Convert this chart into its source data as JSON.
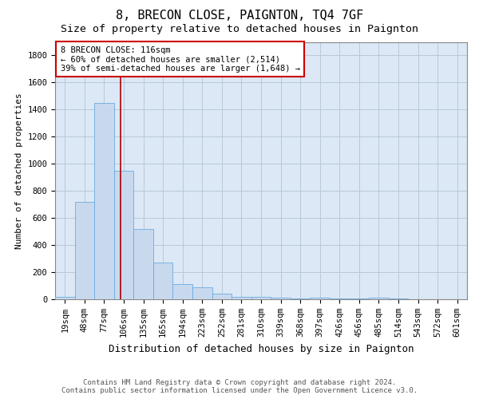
{
  "title": "8, BRECON CLOSE, PAIGNTON, TQ4 7GF",
  "subtitle": "Size of property relative to detached houses in Paignton",
  "xlabel": "Distribution of detached houses by size in Paignton",
  "ylabel": "Number of detached properties",
  "categories": [
    "19sqm",
    "48sqm",
    "77sqm",
    "106sqm",
    "135sqm",
    "165sqm",
    "194sqm",
    "223sqm",
    "252sqm",
    "281sqm",
    "310sqm",
    "339sqm",
    "368sqm",
    "397sqm",
    "426sqm",
    "456sqm",
    "485sqm",
    "514sqm",
    "543sqm",
    "572sqm",
    "601sqm"
  ],
  "values": [
    20,
    720,
    1450,
    950,
    520,
    270,
    110,
    90,
    40,
    20,
    15,
    10,
    5,
    10,
    5,
    5,
    12,
    5,
    2,
    2,
    2
  ],
  "bar_color": "#c8d9ee",
  "bar_edge_color": "#6aabe0",
  "plot_bg_color": "#dce8f5",
  "vline_color": "#aa0000",
  "annotation_text": "8 BRECON CLOSE: 116sqm\n← 60% of detached houses are smaller (2,514)\n39% of semi-detached houses are larger (1,648) →",
  "annotation_box_color": "#ffffff",
  "annotation_box_edge": "#cc0000",
  "ylim": [
    0,
    1900
  ],
  "yticks": [
    0,
    200,
    400,
    600,
    800,
    1000,
    1200,
    1400,
    1600,
    1800
  ],
  "footer_line1": "Contains HM Land Registry data © Crown copyright and database right 2024.",
  "footer_line2": "Contains public sector information licensed under the Open Government Licence v3.0.",
  "title_fontsize": 11,
  "subtitle_fontsize": 9.5,
  "xlabel_fontsize": 9,
  "ylabel_fontsize": 8,
  "tick_fontsize": 7.5,
  "footer_fontsize": 6.5,
  "annotation_fontsize": 7.5,
  "background_color": "#ffffff",
  "grid_color": "#b8c8d8"
}
